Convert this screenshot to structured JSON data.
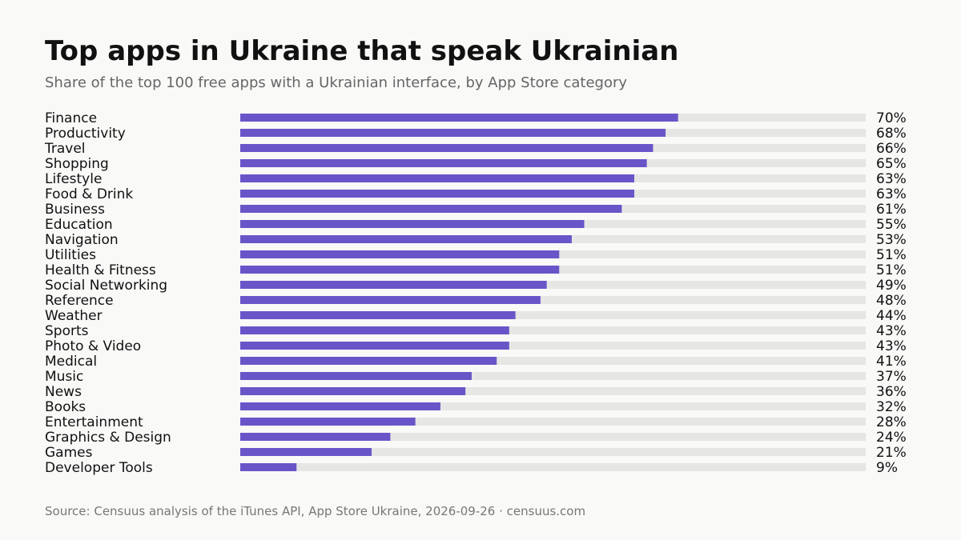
{
  "title": "Top apps in Ukraine that speak Ukrainian",
  "subtitle": "Share of the top 100 free apps with a Ukrainian interface, by App Store category",
  "source": "Source: Censuus analysis of the iTunes API, App Store Ukraine, 2026-09-26 · censuus.com",
  "colors": {
    "bar": "#6a55c8",
    "track": "#e6e6e4",
    "background": "#f9f9f8",
    "label": "#111111"
  },
  "chart_data": {
    "type": "bar",
    "orientation": "horizontal",
    "xlim": [
      0,
      100
    ],
    "value_suffix": "%",
    "grid": false,
    "categories": [
      "Finance",
      "Productivity",
      "Travel",
      "Shopping",
      "Lifestyle",
      "Food & Drink",
      "Business",
      "Education",
      "Navigation",
      "Utilities",
      "Health & Fitness",
      "Social Networking",
      "Reference",
      "Weather",
      "Sports",
      "Photo & Video",
      "Medical",
      "Music",
      "News",
      "Books",
      "Entertainment",
      "Graphics & Design",
      "Games",
      "Developer Tools"
    ],
    "values": [
      70,
      68,
      66,
      65,
      63,
      63,
      61,
      55,
      53,
      51,
      51,
      49,
      48,
      44,
      43,
      43,
      41,
      37,
      36,
      32,
      28,
      24,
      21,
      9
    ],
    "value_labels": [
      "70%",
      "68%",
      "66%",
      "65%",
      "63%",
      "63%",
      "61%",
      "55%",
      "53%",
      "51%",
      "51%",
      "49%",
      "48%",
      "44%",
      "43%",
      "43%",
      "41%",
      "37%",
      "36%",
      "32%",
      "28%",
      "24%",
      "21%",
      "9%"
    ]
  }
}
